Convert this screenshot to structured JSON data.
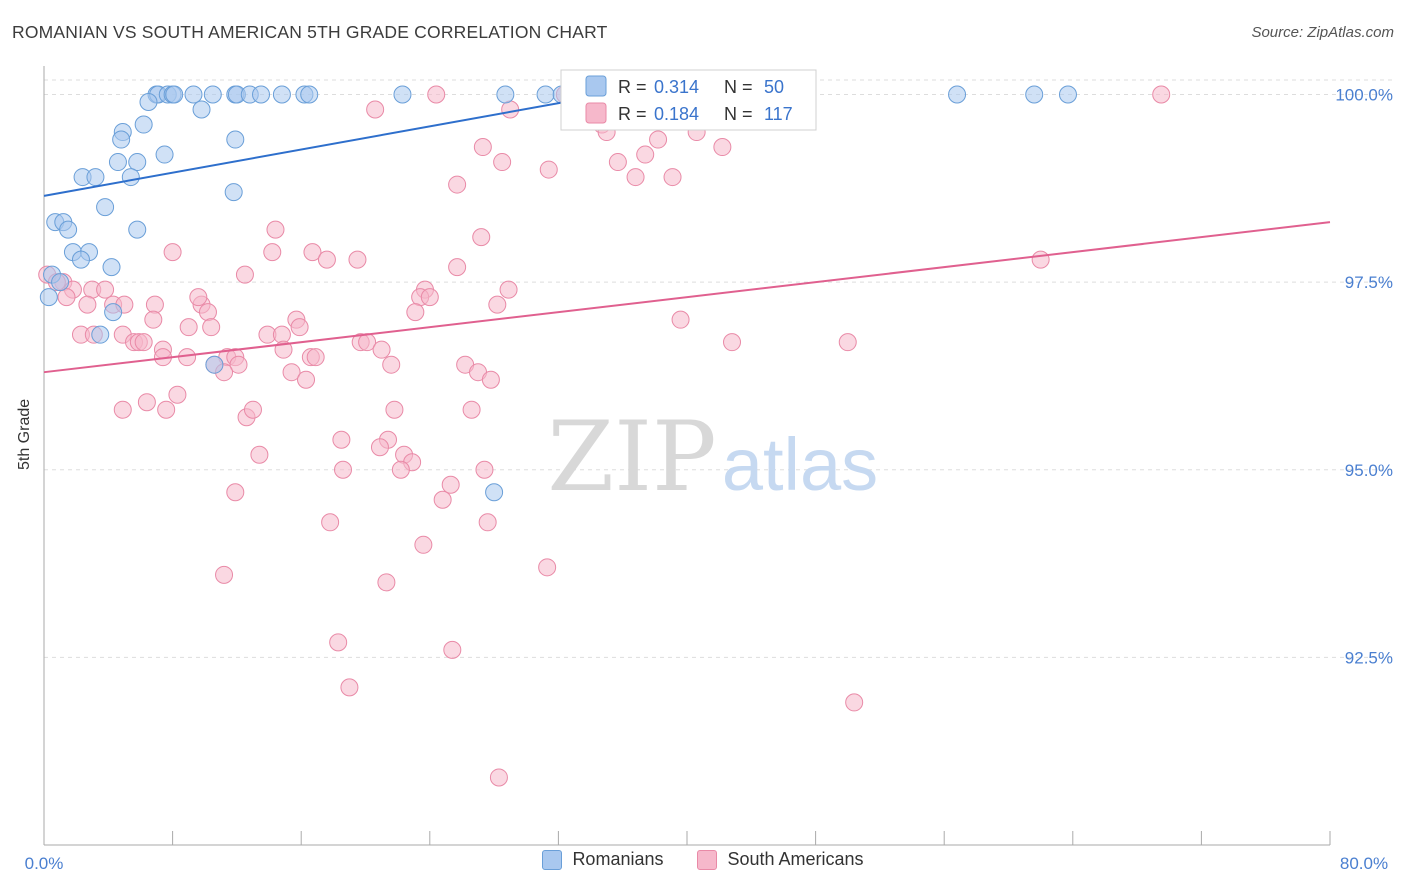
{
  "title": "ROMANIAN VS SOUTH AMERICAN 5TH GRADE CORRELATION CHART",
  "source": "Source: ZipAtlas.com",
  "watermark": {
    "zip": "ZIP",
    "atlas": "atlas"
  },
  "colors": {
    "romanians_fill": "#a9c8ef",
    "romanians_stroke": "#6a9fd8",
    "romanians_line": "#2e6fcc",
    "south_fill": "#f6b8cb",
    "south_stroke": "#e98aa7",
    "south_line": "#e0608f",
    "tick_label": "#4a7fd0",
    "grid": "#dddddd"
  },
  "stats": {
    "romanians": {
      "r_label": "R =",
      "r": "0.314",
      "n_label": "N =",
      "n": "50"
    },
    "south_americans": {
      "r_label": "R =",
      "r": "0.184",
      "n_label": "N =",
      "n": "117"
    }
  },
  "chart_data": {
    "type": "scatter",
    "title": "ROMANIAN VS SOUTH AMERICAN 5TH GRADE CORRELATION CHART",
    "xlabel": "",
    "ylabel": "5th Grade",
    "xlim": [
      0,
      80
    ],
    "ylim": [
      90.0,
      100.3
    ],
    "x_tick_labels": [
      "0.0%",
      "80.0%"
    ],
    "y_ticks": [
      92.5,
      95.0,
      97.5,
      100.0
    ],
    "y_tick_labels": [
      "92.5%",
      "95.0%",
      "97.5%",
      "100.0%"
    ],
    "grid": true,
    "legend_position": "bottom",
    "series": [
      {
        "name": "Romanians",
        "trend": {
          "x": [
            0,
            35
          ],
          "y": [
            98.65,
            100.0
          ]
        },
        "points": [
          [
            7.0,
            100.0
          ],
          [
            7.1,
            100.0
          ],
          [
            7.7,
            100.0
          ],
          [
            8.0,
            100.0
          ],
          [
            8.1,
            100.0
          ],
          [
            9.3,
            100.0
          ],
          [
            10.5,
            100.0
          ],
          [
            11.9,
            100.0
          ],
          [
            12.0,
            100.0
          ],
          [
            12.8,
            100.0
          ],
          [
            13.5,
            100.0
          ],
          [
            14.8,
            100.0
          ],
          [
            16.2,
            100.0
          ],
          [
            16.5,
            100.0
          ],
          [
            22.3,
            100.0
          ],
          [
            28.7,
            100.0
          ],
          [
            31.2,
            100.0
          ],
          [
            32.2,
            100.0
          ],
          [
            56.8,
            100.0
          ],
          [
            61.6,
            100.0
          ],
          [
            63.7,
            100.0
          ],
          [
            6.5,
            99.9
          ],
          [
            9.8,
            99.8
          ],
          [
            6.2,
            99.6
          ],
          [
            4.9,
            99.5
          ],
          [
            4.8,
            99.4
          ],
          [
            11.9,
            99.4
          ],
          [
            7.5,
            99.2
          ],
          [
            4.6,
            99.1
          ],
          [
            5.8,
            99.1
          ],
          [
            5.4,
            98.9
          ],
          [
            2.4,
            98.9
          ],
          [
            3.2,
            98.9
          ],
          [
            11.8,
            98.7
          ],
          [
            3.8,
            98.5
          ],
          [
            0.7,
            98.3
          ],
          [
            1.2,
            98.3
          ],
          [
            1.5,
            98.2
          ],
          [
            5.8,
            98.2
          ],
          [
            1.8,
            97.9
          ],
          [
            2.8,
            97.9
          ],
          [
            2.3,
            97.8
          ],
          [
            4.2,
            97.7
          ],
          [
            0.5,
            97.6
          ],
          [
            1.0,
            97.5
          ],
          [
            0.3,
            97.3
          ],
          [
            4.3,
            97.1
          ],
          [
            3.5,
            96.8
          ],
          [
            10.6,
            96.4
          ],
          [
            28.0,
            94.7
          ]
        ]
      },
      {
        "name": "South Americans",
        "trend": {
          "x": [
            0,
            80
          ],
          "y": [
            96.3,
            98.3
          ]
        },
        "points": [
          [
            24.4,
            100.0
          ],
          [
            32.4,
            100.0
          ],
          [
            36.4,
            100.0
          ],
          [
            69.5,
            100.0
          ],
          [
            20.6,
            99.8
          ],
          [
            29.0,
            99.8
          ],
          [
            38.7,
            99.7
          ],
          [
            40.6,
            99.5
          ],
          [
            34.7,
            99.6
          ],
          [
            35.0,
            99.5
          ],
          [
            37.4,
            99.2
          ],
          [
            27.3,
            99.3
          ],
          [
            38.2,
            99.4
          ],
          [
            42.2,
            99.3
          ],
          [
            39.1,
            98.9
          ],
          [
            28.5,
            99.1
          ],
          [
            35.7,
            99.1
          ],
          [
            31.4,
            99.0
          ],
          [
            36.8,
            98.9
          ],
          [
            25.7,
            98.8
          ],
          [
            14.4,
            98.2
          ],
          [
            27.2,
            98.1
          ],
          [
            8.0,
            97.9
          ],
          [
            14.2,
            97.9
          ],
          [
            16.7,
            97.9
          ],
          [
            17.6,
            97.8
          ],
          [
            19.5,
            97.8
          ],
          [
            62.0,
            97.8
          ],
          [
            25.7,
            97.7
          ],
          [
            12.5,
            97.6
          ],
          [
            1.2,
            97.5
          ],
          [
            0.2,
            97.6
          ],
          [
            0.8,
            97.5
          ],
          [
            1.8,
            97.4
          ],
          [
            3.0,
            97.4
          ],
          [
            3.8,
            97.4
          ],
          [
            23.7,
            97.4
          ],
          [
            28.9,
            97.4
          ],
          [
            1.4,
            97.3
          ],
          [
            2.7,
            97.2
          ],
          [
            4.3,
            97.2
          ],
          [
            5.0,
            97.2
          ],
          [
            6.9,
            97.2
          ],
          [
            9.8,
            97.2
          ],
          [
            9.6,
            97.3
          ],
          [
            23.4,
            97.3
          ],
          [
            24.0,
            97.3
          ],
          [
            28.2,
            97.2
          ],
          [
            23.1,
            97.1
          ],
          [
            6.8,
            97.0
          ],
          [
            10.2,
            97.1
          ],
          [
            15.7,
            97.0
          ],
          [
            39.6,
            97.0
          ],
          [
            9.0,
            96.9
          ],
          [
            10.4,
            96.9
          ],
          [
            13.9,
            96.8
          ],
          [
            14.8,
            96.8
          ],
          [
            15.9,
            96.9
          ],
          [
            2.3,
            96.8
          ],
          [
            3.1,
            96.8
          ],
          [
            4.9,
            96.8
          ],
          [
            5.6,
            96.7
          ],
          [
            5.9,
            96.7
          ],
          [
            6.2,
            96.7
          ],
          [
            7.4,
            96.6
          ],
          [
            14.9,
            96.6
          ],
          [
            19.7,
            96.7
          ],
          [
            20.1,
            96.7
          ],
          [
            21.0,
            96.6
          ],
          [
            42.8,
            96.7
          ],
          [
            50.0,
            96.7
          ],
          [
            7.4,
            96.5
          ],
          [
            8.9,
            96.5
          ],
          [
            11.4,
            96.5
          ],
          [
            11.9,
            96.5
          ],
          [
            16.6,
            96.5
          ],
          [
            16.9,
            96.5
          ],
          [
            10.6,
            96.4
          ],
          [
            12.1,
            96.4
          ],
          [
            21.6,
            96.4
          ],
          [
            26.2,
            96.4
          ],
          [
            11.2,
            96.3
          ],
          [
            15.4,
            96.3
          ],
          [
            27.0,
            96.3
          ],
          [
            16.3,
            96.2
          ],
          [
            27.8,
            96.2
          ],
          [
            8.3,
            96.0
          ],
          [
            6.4,
            95.9
          ],
          [
            4.9,
            95.8
          ],
          [
            7.6,
            95.8
          ],
          [
            12.6,
            95.7
          ],
          [
            13.0,
            95.8
          ],
          [
            21.8,
            95.8
          ],
          [
            26.6,
            95.8
          ],
          [
            18.5,
            95.4
          ],
          [
            21.4,
            95.4
          ],
          [
            22.4,
            95.2
          ],
          [
            20.9,
            95.3
          ],
          [
            13.4,
            95.2
          ],
          [
            22.9,
            95.1
          ],
          [
            22.2,
            95.0
          ],
          [
            18.6,
            95.0
          ],
          [
            27.4,
            95.0
          ],
          [
            25.3,
            94.8
          ],
          [
            11.9,
            94.7
          ],
          [
            24.8,
            94.6
          ],
          [
            17.8,
            94.3
          ],
          [
            27.6,
            94.3
          ],
          [
            23.6,
            94.0
          ],
          [
            31.3,
            93.7
          ],
          [
            11.2,
            93.6
          ],
          [
            21.3,
            93.5
          ],
          [
            18.3,
            92.7
          ],
          [
            25.4,
            92.6
          ],
          [
            19.0,
            92.1
          ],
          [
            50.4,
            91.9
          ],
          [
            28.3,
            90.9
          ]
        ]
      }
    ]
  },
  "legend": {
    "romanians": "Romanians",
    "south_americans": "South Americans"
  }
}
